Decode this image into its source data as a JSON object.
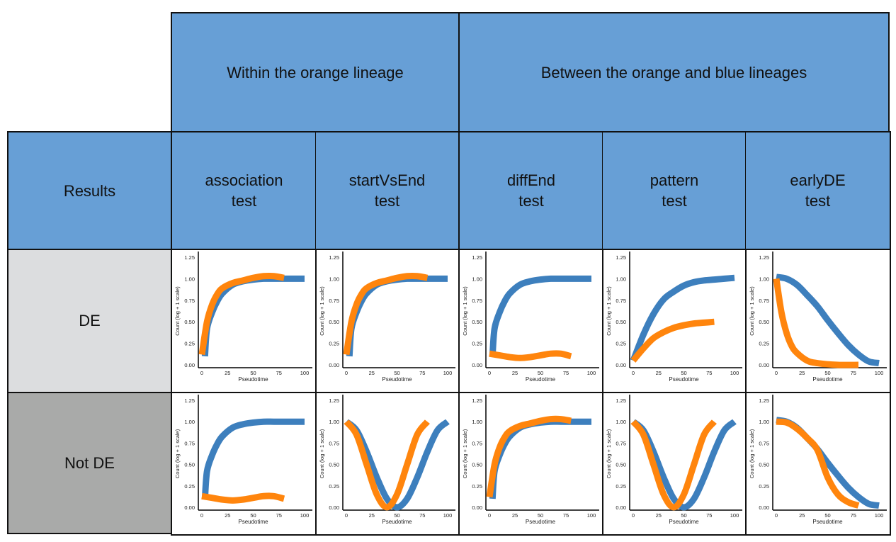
{
  "header": {
    "group_within": "Within the orange lineage",
    "group_between": "Between the orange and blue lineages",
    "results": "Results",
    "tests": [
      {
        "line1": "association",
        "line2": "test"
      },
      {
        "line1": "startVsEnd",
        "line2": "test"
      },
      {
        "line1": "diffEnd",
        "line2": "test"
      },
      {
        "line1": "pattern",
        "line2": "test"
      },
      {
        "line1": "earlyDE",
        "line2": "test"
      }
    ]
  },
  "rows": [
    {
      "label": "DE",
      "color": "#dcdddf"
    },
    {
      "label": "Not DE",
      "color": "#a9aaa9"
    }
  ],
  "colors": {
    "header": "#679fd6",
    "blue": "#3d7fbd",
    "orange": "#ff850d"
  },
  "chart_data": {
    "type": "line",
    "xlabel": "Pseudotime",
    "ylabel": "Count (log + 1 scale)",
    "xlim": [
      0,
      100
    ],
    "ylim": [
      0,
      1.25
    ],
    "xticks": [
      "0",
      "25",
      "50",
      "75",
      "100"
    ],
    "yticks": [
      "0.00",
      "0.25",
      "0.50",
      "0.75",
      "1.00",
      "1.25"
    ],
    "grid": false,
    "panels": [
      {
        "row": "DE",
        "test": "association",
        "blue": {
          "x": [
            3,
            5,
            10,
            15,
            20,
            30,
            40,
            50,
            60,
            70,
            80,
            90,
            100
          ],
          "y": [
            0.1,
            0.42,
            0.61,
            0.74,
            0.83,
            0.93,
            0.97,
            0.99,
            1.0,
            1.0,
            1.0,
            1.0,
            1.0
          ]
        },
        "orange": {
          "x": [
            0,
            5,
            10,
            15,
            20,
            30,
            40,
            50,
            60,
            70,
            80
          ],
          "y": [
            0.12,
            0.5,
            0.7,
            0.82,
            0.89,
            0.95,
            0.98,
            1.01,
            1.03,
            1.03,
            1.01
          ]
        }
      },
      {
        "row": "DE",
        "test": "startVsEnd",
        "blue": {
          "x": [
            3,
            5,
            10,
            15,
            20,
            30,
            40,
            50,
            60,
            70,
            80,
            90,
            100
          ],
          "y": [
            0.1,
            0.42,
            0.61,
            0.74,
            0.83,
            0.93,
            0.97,
            0.99,
            1.0,
            1.0,
            1.0,
            1.0,
            1.0
          ]
        },
        "orange": {
          "x": [
            0,
            5,
            10,
            15,
            20,
            30,
            40,
            50,
            60,
            70,
            80
          ],
          "y": [
            0.12,
            0.5,
            0.7,
            0.82,
            0.89,
            0.95,
            0.98,
            1.01,
            1.03,
            1.03,
            1.01
          ]
        }
      },
      {
        "row": "DE",
        "test": "diffEnd",
        "blue": {
          "x": [
            3,
            5,
            10,
            15,
            20,
            30,
            40,
            50,
            60,
            70,
            80,
            90,
            100
          ],
          "y": [
            0.1,
            0.42,
            0.61,
            0.74,
            0.83,
            0.93,
            0.97,
            0.99,
            1.0,
            1.0,
            1.0,
            1.0,
            1.0
          ]
        },
        "orange": {
          "x": [
            0,
            10,
            20,
            30,
            40,
            50,
            60,
            70,
            80
          ],
          "y": [
            0.13,
            0.11,
            0.09,
            0.08,
            0.09,
            0.11,
            0.13,
            0.13,
            0.1
          ]
        }
      },
      {
        "row": "DE",
        "test": "pattern",
        "blue": {
          "x": [
            0,
            10,
            20,
            30,
            40,
            50,
            60,
            70,
            80,
            90,
            100
          ],
          "y": [
            0.05,
            0.35,
            0.59,
            0.76,
            0.85,
            0.92,
            0.96,
            0.98,
            0.99,
            1.0,
            1.01
          ]
        },
        "orange": {
          "x": [
            0,
            10,
            20,
            30,
            40,
            50,
            60,
            70,
            80
          ],
          "y": [
            0.05,
            0.19,
            0.31,
            0.38,
            0.43,
            0.46,
            0.48,
            0.49,
            0.5
          ]
        }
      },
      {
        "row": "DE",
        "test": "earlyDE",
        "blue": {
          "x": [
            0,
            10,
            20,
            30,
            40,
            50,
            60,
            70,
            80,
            90,
            100
          ],
          "y": [
            1.02,
            1.0,
            0.93,
            0.81,
            0.68,
            0.52,
            0.37,
            0.23,
            0.12,
            0.04,
            0.02
          ]
        },
        "orange": {
          "x": [
            0,
            5,
            10,
            15,
            20,
            30,
            40,
            60,
            80
          ],
          "y": [
            1.0,
            0.61,
            0.37,
            0.22,
            0.14,
            0.05,
            0.02,
            0.0,
            0.0
          ]
        }
      },
      {
        "row": "Not DE",
        "test": "association",
        "blue": {
          "x": [
            3,
            5,
            10,
            15,
            20,
            30,
            40,
            50,
            60,
            70,
            80,
            90,
            100
          ],
          "y": [
            0.1,
            0.42,
            0.61,
            0.74,
            0.83,
            0.93,
            0.97,
            0.99,
            1.0,
            1.0,
            1.0,
            1.0,
            1.0
          ]
        },
        "orange": {
          "x": [
            0,
            10,
            20,
            30,
            40,
            50,
            60,
            70,
            80
          ],
          "y": [
            0.13,
            0.11,
            0.09,
            0.08,
            0.09,
            0.11,
            0.13,
            0.13,
            0.1
          ]
        }
      },
      {
        "row": "Not DE",
        "test": "startVsEnd",
        "blue": {
          "x": [
            0,
            10,
            20,
            30,
            40,
            50,
            60,
            70,
            80,
            90,
            100
          ],
          "y": [
            1.0,
            0.9,
            0.65,
            0.35,
            0.1,
            0.0,
            0.1,
            0.35,
            0.65,
            0.9,
            1.0
          ]
        },
        "orange": {
          "x": [
            0,
            10,
            20,
            30,
            40,
            50,
            60,
            70,
            80
          ],
          "y": [
            1.0,
            0.85,
            0.5,
            0.15,
            0.0,
            0.15,
            0.5,
            0.85,
            1.0
          ]
        }
      },
      {
        "row": "Not DE",
        "test": "diffEnd",
        "blue": {
          "x": [
            3,
            5,
            10,
            15,
            20,
            30,
            40,
            50,
            60,
            70,
            80,
            90,
            100
          ],
          "y": [
            0.1,
            0.42,
            0.61,
            0.74,
            0.83,
            0.93,
            0.97,
            0.99,
            1.0,
            1.0,
            1.0,
            1.0,
            1.0
          ]
        },
        "orange": {
          "x": [
            0,
            5,
            10,
            15,
            20,
            30,
            40,
            50,
            60,
            70,
            80
          ],
          "y": [
            0.12,
            0.5,
            0.7,
            0.82,
            0.89,
            0.95,
            0.98,
            1.01,
            1.03,
            1.03,
            1.01
          ]
        }
      },
      {
        "row": "Not DE",
        "test": "pattern",
        "blue": {
          "x": [
            0,
            10,
            20,
            30,
            40,
            50,
            60,
            70,
            80,
            90,
            100
          ],
          "y": [
            1.0,
            0.9,
            0.65,
            0.35,
            0.1,
            0.0,
            0.1,
            0.35,
            0.65,
            0.9,
            1.0
          ]
        },
        "orange": {
          "x": [
            0,
            10,
            20,
            30,
            40,
            50,
            60,
            70,
            80
          ],
          "y": [
            1.0,
            0.85,
            0.5,
            0.15,
            0.0,
            0.15,
            0.5,
            0.85,
            1.0
          ]
        }
      },
      {
        "row": "Not DE",
        "test": "earlyDE",
        "blue": {
          "x": [
            0,
            10,
            20,
            30,
            40,
            50,
            60,
            70,
            80,
            90,
            100
          ],
          "y": [
            1.02,
            1.0,
            0.93,
            0.81,
            0.68,
            0.52,
            0.37,
            0.23,
            0.12,
            0.04,
            0.02
          ]
        },
        "orange": {
          "x": [
            0,
            10,
            20,
            30,
            40,
            50,
            60,
            70,
            80
          ],
          "y": [
            1.0,
            0.99,
            0.92,
            0.81,
            0.67,
            0.35,
            0.15,
            0.06,
            0.02
          ]
        }
      }
    ]
  }
}
